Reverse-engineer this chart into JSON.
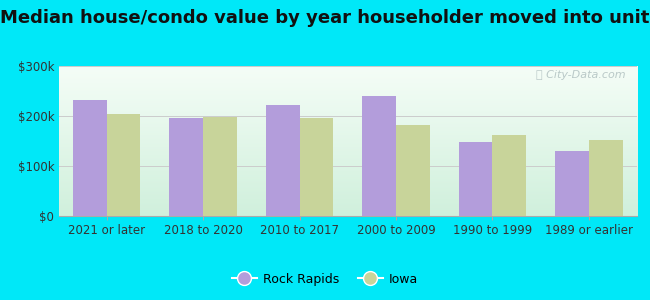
{
  "title": "Median house/condo value by year householder moved into unit",
  "categories": [
    "2021 or later",
    "2018 to 2020",
    "2010 to 2017",
    "2000 to 2009",
    "1990 to 1999",
    "1989 or earlier"
  ],
  "rock_rapids": [
    232000,
    196000,
    222000,
    240000,
    148000,
    130000
  ],
  "iowa": [
    204000,
    198000,
    196000,
    183000,
    163000,
    152000
  ],
  "bar_color_rr": "#b39ddb",
  "bar_color_iowa": "#c8d49a",
  "background_outer": "#00e8f8",
  "ylim": [
    0,
    300000
  ],
  "yticks": [
    0,
    100000,
    200000,
    300000
  ],
  "ytick_labels": [
    "$0",
    "$100k",
    "$200k",
    "$300k"
  ],
  "legend_rr": "Rock Rapids",
  "legend_iowa": "Iowa",
  "bar_width": 0.35,
  "title_fontsize": 13,
  "tick_fontsize": 8.5,
  "grid_color": "#cccccc",
  "watermark": "ⓘ City-Data.com"
}
